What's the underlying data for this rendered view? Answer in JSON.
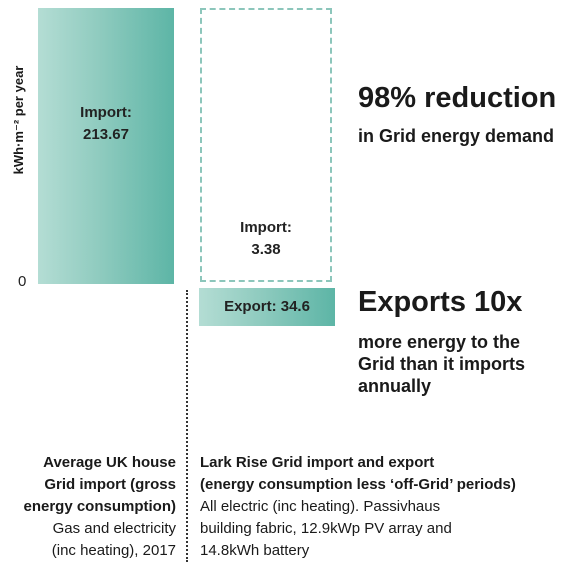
{
  "chart_data": {
    "type": "bar",
    "ylabel": "kWh·m⁻² per year",
    "ytick_zero": "0",
    "bars": [
      {
        "category": "Average UK house",
        "series": "Import",
        "value": 213.67,
        "label_name": "Import:",
        "label_value": "213.67"
      },
      {
        "category": "Lark Rise",
        "series": "Import",
        "value": 3.38,
        "label_name": "Import:",
        "label_value": "3.38"
      },
      {
        "category": "Lark Rise",
        "series": "Export",
        "value": 34.6,
        "label": "Export: 34.6"
      }
    ],
    "annotations": {
      "reduction_headline": "98% reduction",
      "reduction_sub": "in Grid energy demand",
      "exports_headline": "Exports 10x",
      "exports_sub": [
        "more energy to the",
        "Grid than it imports",
        "annually"
      ]
    },
    "captions": {
      "left_bold": [
        "Average UK house",
        "Grid import (gross",
        "energy consumption)"
      ],
      "left_normal": [
        "Gas and electricity",
        "(inc heating), 2017"
      ],
      "right_bold": [
        "Lark Rise Grid import and export",
        "(energy consumption less ‘off-Grid’ periods)"
      ],
      "right_normal": [
        "All electric (inc heating). Passivhaus",
        "building fabric, 12.9kWp PV array and",
        "14.8kWh battery"
      ]
    },
    "colors": {
      "bar_light": "#b4ddd4",
      "bar_dark": "#5db5a6",
      "dashed_outline": "#8cc6bb"
    }
  }
}
